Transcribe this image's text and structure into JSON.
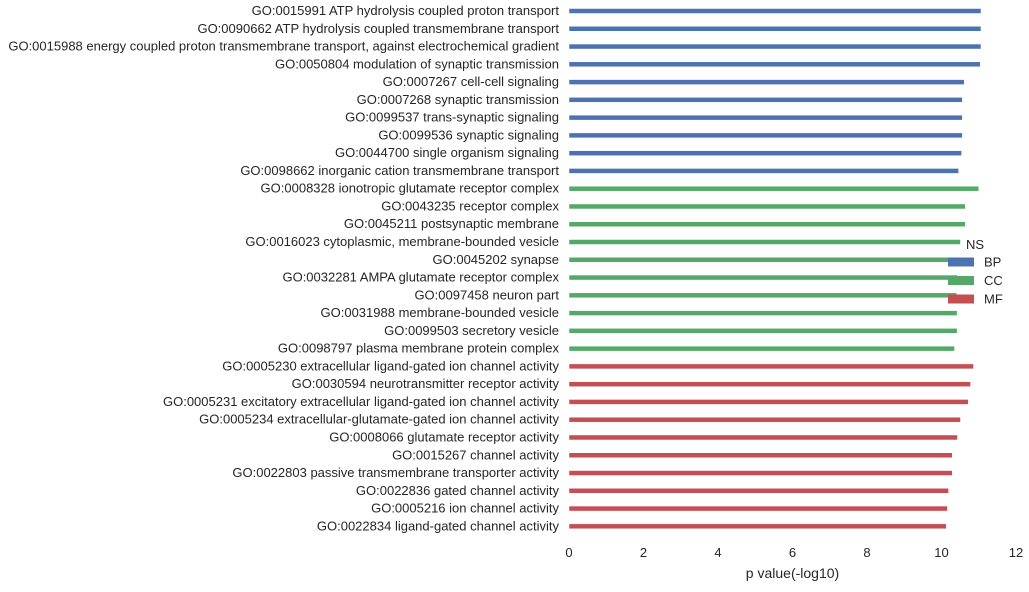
{
  "chart_data": {
    "type": "bar",
    "orientation": "horizontal",
    "xlabel": "p value(-log10)",
    "ylabel": "",
    "xlim": [
      0,
      12
    ],
    "xticks": [
      0,
      2,
      4,
      6,
      8,
      10,
      12
    ],
    "grid": false,
    "legend": {
      "title": "NS",
      "placement": "right",
      "entries": [
        "BP",
        "CC",
        "MF"
      ]
    },
    "colors": {
      "BP": "#4c72b0",
      "CC": "#55a868",
      "MF": "#c44e52"
    },
    "categories": [
      "GO:0015991 ATP hydrolysis coupled proton transport",
      "GO:0090662 ATP hydrolysis coupled transmembrane transport",
      "GO:0015988 energy coupled proton transmembrane transport, against electrochemical gradient",
      "GO:0050804 modulation of synaptic transmission",
      "GO:0007267 cell-cell signaling",
      "GO:0007268 synaptic transmission",
      "GO:0099537 trans-synaptic signaling",
      "GO:0099536 synaptic signaling",
      "GO:0044700 single organism signaling",
      "GO:0098662 inorganic cation transmembrane transport",
      "GO:0008328 ionotropic glutamate receptor complex",
      "GO:0043235 receptor complex",
      "GO:0045211 postsynaptic membrane",
      "GO:0016023 cytoplasmic, membrane-bounded vesicle",
      "GO:0045202 synapse",
      "GO:0032281 AMPA glutamate receptor complex",
      "GO:0097458 neuron part",
      "GO:0031988 membrane-bounded vesicle",
      "GO:0099503 secretory vesicle",
      "GO:0098797 plasma membrane protein complex",
      "GO:0005230 extracellular ligand-gated ion channel activity",
      "GO:0030594 neurotransmitter receptor activity",
      "GO:0005231 excitatory extracellular ligand-gated ion channel activity",
      "GO:0005234 extracellular-glutamate-gated ion channel activity",
      "GO:0008066 glutamate receptor activity",
      "GO:0015267 channel activity",
      "GO:0022803 passive transmembrane transporter activity",
      "GO:0022836 gated channel activity",
      "GO:0005216 ion channel activity",
      "GO:0022834 ligand-gated channel activity"
    ],
    "groups": [
      "BP",
      "BP",
      "BP",
      "BP",
      "BP",
      "BP",
      "BP",
      "BP",
      "BP",
      "BP",
      "CC",
      "CC",
      "CC",
      "CC",
      "CC",
      "CC",
      "CC",
      "CC",
      "CC",
      "CC",
      "MF",
      "MF",
      "MF",
      "MF",
      "MF",
      "MF",
      "MF",
      "MF",
      "MF",
      "MF"
    ],
    "values": [
      11.06,
      11.06,
      11.06,
      11.04,
      10.61,
      10.56,
      10.56,
      10.56,
      10.54,
      10.46,
      11.0,
      10.64,
      10.64,
      10.51,
      10.43,
      10.43,
      10.41,
      10.42,
      10.42,
      10.35,
      10.86,
      10.78,
      10.72,
      10.51,
      10.43,
      10.29,
      10.29,
      10.19,
      10.16,
      10.13
    ]
  }
}
